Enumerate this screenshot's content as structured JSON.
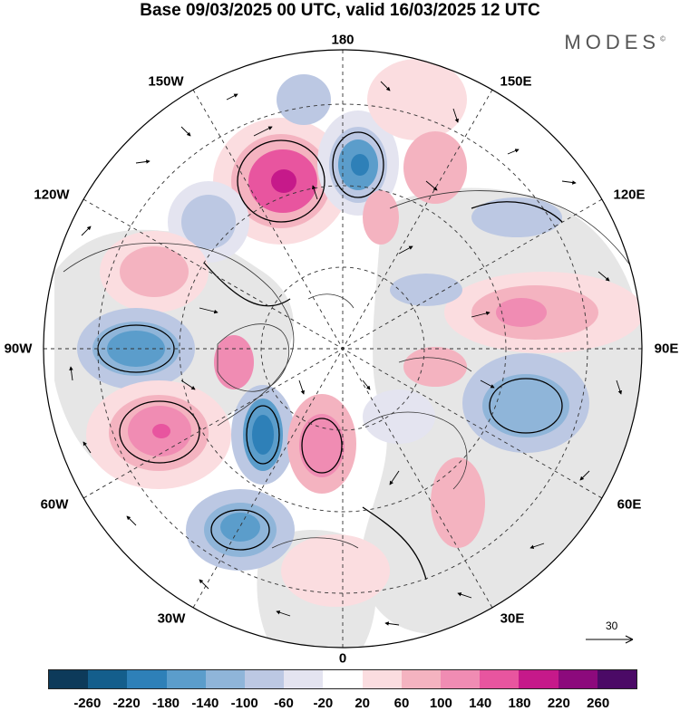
{
  "title": "Base 09/03/2025 00 UTC, valid 16/03/2025 12 UTC",
  "brand": "MODES",
  "brand_mark": "©",
  "longitude_labels": {
    "top": "180",
    "top_left": "150W",
    "top_right": "150E",
    "upper_left": "120W",
    "upper_right": "120E",
    "left": "90W",
    "right": "90E",
    "lower_left": "60W",
    "lower_right": "60E",
    "bottom_left": "30W",
    "bottom_right": "30E",
    "bottom": "0"
  },
  "reference_vector_label": "30",
  "colorbar": {
    "colors": [
      "#0d3a5a",
      "#145e8c",
      "#2e80b8",
      "#5b9dcb",
      "#8fb5d9",
      "#bcc8e3",
      "#e4e4f0",
      "#ffffff",
      "#fbdde0",
      "#f4b3c0",
      "#f08cb3",
      "#e8559f",
      "#c6198a",
      "#8c0a7c",
      "#4b0a66"
    ],
    "ticks": [
      "-260",
      "-220",
      "-180",
      "-140",
      "-100",
      "-60",
      "-20",
      "20",
      "60",
      "100",
      "140",
      "180",
      "220",
      "260"
    ]
  },
  "map_colors": {
    "land_gray": "#e6e6e6",
    "pos_light": "#fbdde0",
    "pos_mid": "#f4b3c0",
    "pos_strong": "#e8559f",
    "pos_max": "#c6198a",
    "neg_light": "#e4e4f0",
    "neg_mid": "#bcc8e3",
    "neg_strong": "#5b9dcb",
    "neg_max": "#2e80b8"
  }
}
